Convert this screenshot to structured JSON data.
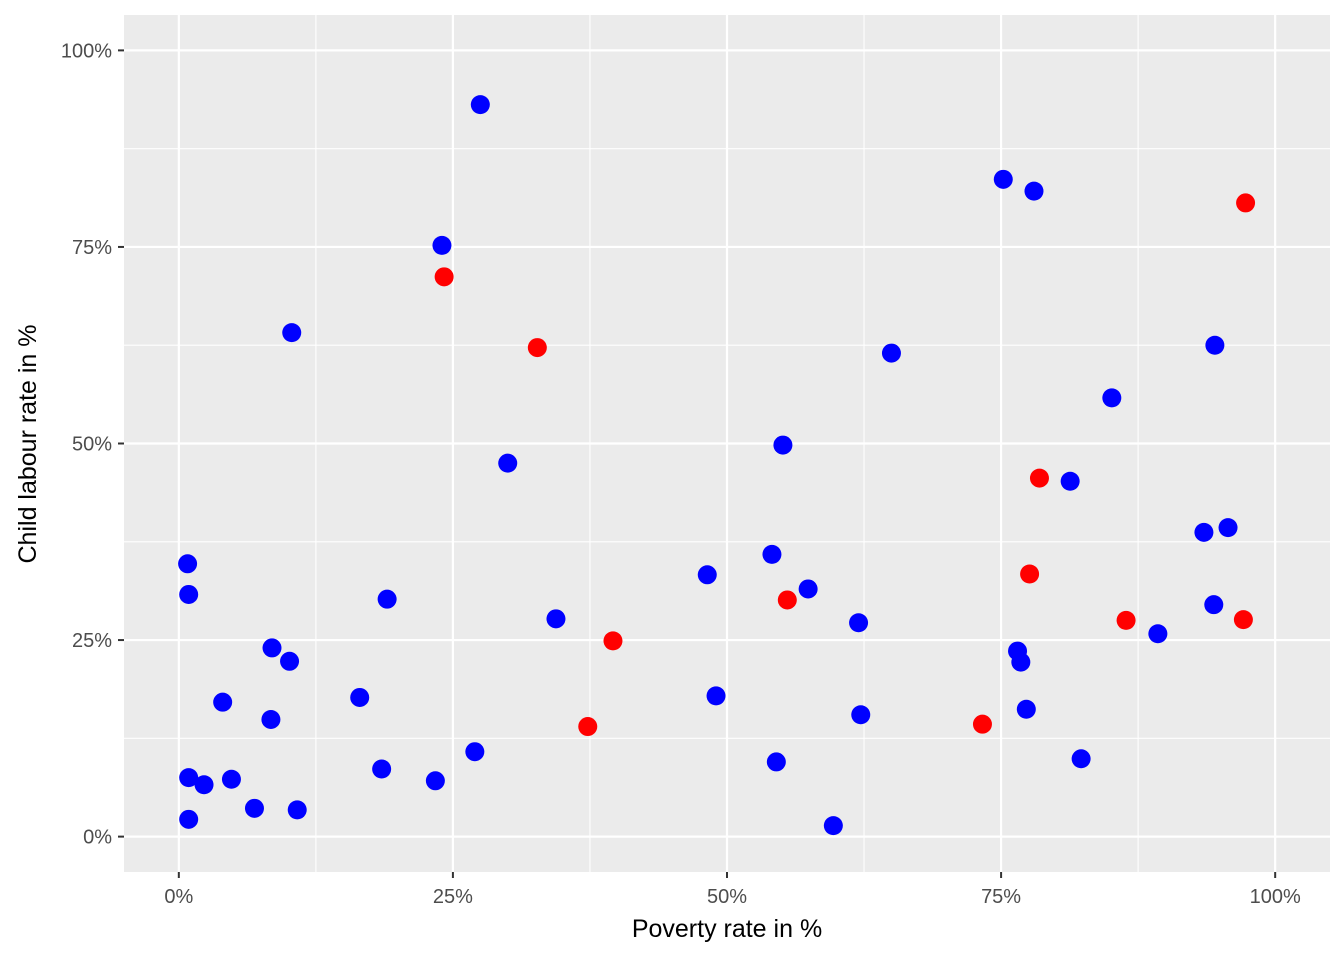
{
  "chart_data": {
    "type": "scatter",
    "title": "",
    "xlabel": "Poverty rate in %",
    "ylabel": "Child labour rate in %",
    "xlim": [
      -0.05,
      1.05
    ],
    "ylim": [
      -0.045,
      1.045
    ],
    "x_ticks": [
      0,
      0.25,
      0.5,
      0.75,
      1.0
    ],
    "x_tick_labels": [
      "0%",
      "25%",
      "50%",
      "75%",
      "100%"
    ],
    "y_ticks": [
      0,
      0.25,
      0.5,
      0.75,
      1.0
    ],
    "y_tick_labels": [
      "0%",
      "25%",
      "50%",
      "75%",
      "100%"
    ],
    "grid": true,
    "legend": "none",
    "colors": {
      "blue": "#0000ff",
      "red": "#ff0000",
      "panel": "#ebebeb",
      "grid": "#ffffff"
    },
    "series": [
      {
        "color": "#0000ff",
        "points": [
          [
            0.275,
            0.931
          ],
          [
            0.752,
            0.836
          ],
          [
            0.78,
            0.821
          ],
          [
            0.24,
            0.752
          ],
          [
            0.103,
            0.641
          ],
          [
            0.65,
            0.615
          ],
          [
            0.945,
            0.625
          ],
          [
            0.851,
            0.558
          ],
          [
            0.551,
            0.498
          ],
          [
            0.3,
            0.475
          ],
          [
            0.813,
            0.452
          ],
          [
            0.957,
            0.393
          ],
          [
            0.935,
            0.387
          ],
          [
            0.008,
            0.347
          ],
          [
            0.541,
            0.359
          ],
          [
            0.482,
            0.333
          ],
          [
            0.574,
            0.315
          ],
          [
            0.009,
            0.308
          ],
          [
            0.19,
            0.302
          ],
          [
            0.944,
            0.295
          ],
          [
            0.344,
            0.277
          ],
          [
            0.62,
            0.272
          ],
          [
            0.893,
            0.258
          ],
          [
            0.085,
            0.24
          ],
          [
            0.101,
            0.223
          ],
          [
            0.765,
            0.236
          ],
          [
            0.768,
            0.222
          ],
          [
            0.49,
            0.179
          ],
          [
            0.165,
            0.177
          ],
          [
            0.04,
            0.171
          ],
          [
            0.622,
            0.155
          ],
          [
            0.773,
            0.162
          ],
          [
            0.084,
            0.149
          ],
          [
            0.27,
            0.108
          ],
          [
            0.823,
            0.099
          ],
          [
            0.545,
            0.095
          ],
          [
            0.185,
            0.086
          ],
          [
            0.009,
            0.075
          ],
          [
            0.023,
            0.066
          ],
          [
            0.048,
            0.073
          ],
          [
            0.234,
            0.071
          ],
          [
            0.069,
            0.036
          ],
          [
            0.108,
            0.034
          ],
          [
            0.009,
            0.022
          ],
          [
            0.597,
            0.014
          ]
        ]
      },
      {
        "color": "#ff0000",
        "points": [
          [
            0.973,
            0.806
          ],
          [
            0.242,
            0.712
          ],
          [
            0.327,
            0.622
          ],
          [
            0.785,
            0.456
          ],
          [
            0.776,
            0.334
          ],
          [
            0.555,
            0.301
          ],
          [
            0.864,
            0.275
          ],
          [
            0.971,
            0.276
          ],
          [
            0.396,
            0.249
          ],
          [
            0.373,
            0.14
          ],
          [
            0.733,
            0.143
          ]
        ]
      }
    ]
  }
}
